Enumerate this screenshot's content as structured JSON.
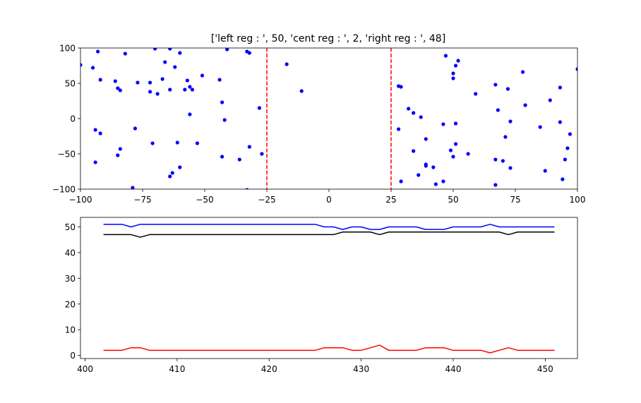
{
  "chart_data": [
    {
      "type": "scatter",
      "title": "['left reg : ', 50, 'cent reg : ', 2, 'right reg : ', 48]",
      "xlabel": "",
      "ylabel": "",
      "xlim": [
        -100,
        100
      ],
      "ylim": [
        -100,
        100
      ],
      "xticks": [
        -100,
        -75,
        -50,
        -25,
        0,
        25,
        50,
        75,
        100
      ],
      "xtick_labels": [
        "−100",
        "−75",
        "−50",
        "−25",
        "0",
        "25",
        "50",
        "75",
        "100"
      ],
      "yticks": [
        -100,
        -50,
        0,
        50,
        100
      ],
      "ytick_labels": [
        "−100",
        "−50",
        "0",
        "50",
        "100"
      ],
      "grid": false,
      "point_color": "#0000ff",
      "boundary_color": "#ff0000",
      "vertical_boundaries": [
        -25,
        25
      ],
      "points": [
        [
          -100,
          76
        ],
        [
          -95,
          72
        ],
        [
          -93,
          95
        ],
        [
          -94,
          -16
        ],
        [
          -92,
          -21
        ],
        [
          -92,
          55
        ],
        [
          -94,
          -62
        ],
        [
          -86,
          53
        ],
        [
          -85,
          43
        ],
        [
          -84,
          40
        ],
        [
          -85,
          -52
        ],
        [
          -84,
          -43
        ],
        [
          -82,
          92
        ],
        [
          -79,
          -98
        ],
        [
          -78,
          -14
        ],
        [
          -77,
          51
        ],
        [
          -72,
          51
        ],
        [
          -72,
          38
        ],
        [
          -71,
          -35
        ],
        [
          -70,
          99
        ],
        [
          -69,
          35
        ],
        [
          -67,
          56
        ],
        [
          -66,
          80
        ],
        [
          -64,
          99
        ],
        [
          -64,
          41
        ],
        [
          -64,
          -82
        ],
        [
          -63,
          -77
        ],
        [
          -62,
          73
        ],
        [
          -61,
          -34
        ],
        [
          -60,
          93
        ],
        [
          -60,
          -69
        ],
        [
          -58,
          41
        ],
        [
          -57,
          54
        ],
        [
          -56,
          45
        ],
        [
          -55,
          41
        ],
        [
          -56,
          6
        ],
        [
          -53,
          -35
        ],
        [
          -51,
          61
        ],
        [
          -44,
          55
        ],
        [
          -43,
          23
        ],
        [
          -42,
          -2
        ],
        [
          -41,
          98
        ],
        [
          -43,
          -54
        ],
        [
          -36,
          -58
        ],
        [
          -33,
          95
        ],
        [
          -32,
          93
        ],
        [
          -32,
          -40
        ],
        [
          -33,
          -101
        ],
        [
          -28,
          15
        ],
        [
          -27,
          -50
        ],
        [
          -17,
          77
        ],
        [
          -11,
          39
        ],
        [
          28,
          46
        ],
        [
          29,
          45
        ],
        [
          28,
          -15
        ],
        [
          29,
          -89
        ],
        [
          32,
          14
        ],
        [
          34,
          8
        ],
        [
          34,
          -46
        ],
        [
          37,
          2
        ],
        [
          36,
          -80
        ],
        [
          39,
          -29
        ],
        [
          39,
          -65
        ],
        [
          39,
          -67
        ],
        [
          42,
          -69
        ],
        [
          43,
          -93
        ],
        [
          46,
          -89
        ],
        [
          46,
          -8
        ],
        [
          47,
          89
        ],
        [
          49,
          -45
        ],
        [
          50,
          64
        ],
        [
          50,
          57
        ],
        [
          51,
          75
        ],
        [
          52,
          82
        ],
        [
          51,
          -7
        ],
        [
          50,
          -54
        ],
        [
          51,
          -36
        ],
        [
          56,
          -50
        ],
        [
          59,
          35
        ],
        [
          67,
          48
        ],
        [
          68,
          12
        ],
        [
          67,
          -58
        ],
        [
          67,
          -94
        ],
        [
          70,
          -60
        ],
        [
          71,
          -26
        ],
        [
          72,
          42
        ],
        [
          73,
          -4
        ],
        [
          73,
          -70
        ],
        [
          78,
          66
        ],
        [
          79,
          19
        ],
        [
          85,
          -12
        ],
        [
          87,
          -74
        ],
        [
          89,
          26
        ],
        [
          93,
          44
        ],
        [
          93,
          -5
        ],
        [
          94,
          -86
        ],
        [
          95,
          -58
        ],
        [
          96,
          -42
        ],
        [
          97,
          -22
        ],
        [
          100,
          70
        ]
      ]
    },
    {
      "type": "line",
      "title": "",
      "xlabel": "",
      "ylabel": "",
      "xlim": [
        399.5,
        453.5
      ],
      "ylim": [
        -1.2,
        53.7
      ],
      "xticks": [
        400,
        410,
        420,
        430,
        440,
        450
      ],
      "xtick_labels": [
        "400",
        "410",
        "420",
        "430",
        "440",
        "450"
      ],
      "yticks": [
        0,
        10,
        20,
        30,
        40,
        50
      ],
      "ytick_labels": [
        "0",
        "10",
        "20",
        "30",
        "40",
        "50"
      ],
      "grid": false,
      "x": [
        402,
        403,
        404,
        405,
        406,
        407,
        408,
        409,
        410,
        411,
        412,
        413,
        414,
        415,
        416,
        417,
        418,
        419,
        420,
        421,
        422,
        423,
        424,
        425,
        426,
        427,
        428,
        429,
        430,
        431,
        432,
        433,
        434,
        435,
        436,
        437,
        438,
        439,
        440,
        441,
        442,
        443,
        444,
        445,
        446,
        447,
        448,
        449,
        450,
        451
      ],
      "series": [
        {
          "color": "#0000ff",
          "values": [
            51,
            51,
            51,
            50,
            51,
            51,
            51,
            51,
            51,
            51,
            51,
            51,
            51,
            51,
            51,
            51,
            51,
            51,
            51,
            51,
            51,
            51,
            51,
            51,
            50,
            50,
            49,
            50,
            50,
            49,
            49,
            50,
            50,
            50,
            50,
            49,
            49,
            49,
            50,
            50,
            50,
            50,
            51,
            50,
            50,
            50,
            50,
            50,
            50,
            50
          ]
        },
        {
          "color": "#000000",
          "values": [
            47,
            47,
            47,
            47,
            46,
            47,
            47,
            47,
            47,
            47,
            47,
            47,
            47,
            47,
            47,
            47,
            47,
            47,
            47,
            47,
            47,
            47,
            47,
            47,
            47,
            47,
            48,
            48,
            48,
            48,
            47,
            48,
            48,
            48,
            48,
            48,
            48,
            48,
            48,
            48,
            48,
            48,
            48,
            48,
            47,
            48,
            48,
            48,
            48,
            48
          ]
        },
        {
          "color": "#ff0000",
          "values": [
            2,
            2,
            2,
            3,
            3,
            2,
            2,
            2,
            2,
            2,
            2,
            2,
            2,
            2,
            2,
            2,
            2,
            2,
            2,
            2,
            2,
            2,
            2,
            2,
            3,
            3,
            3,
            2,
            2,
            3,
            4,
            2,
            2,
            2,
            2,
            3,
            3,
            3,
            2,
            2,
            2,
            2,
            1,
            2,
            3,
            2,
            2,
            2,
            2,
            2
          ]
        }
      ]
    }
  ]
}
